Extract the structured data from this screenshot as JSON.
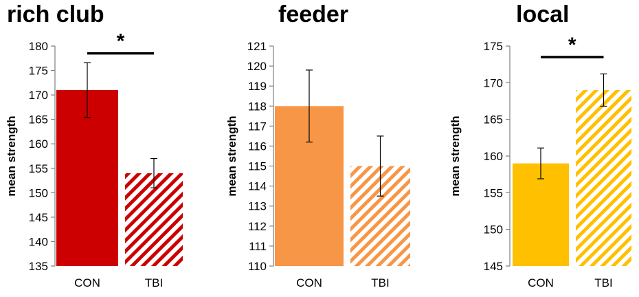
{
  "chart_data": [
    {
      "type": "bar",
      "title": "rich club",
      "ylabel": "mean strength",
      "xlabel": "",
      "categories": [
        "CON",
        "TBI"
      ],
      "values": [
        171,
        154
      ],
      "error": [
        5.6,
        3.0
      ],
      "ylim": [
        135,
        180
      ],
      "ytick_step": 5,
      "colors": [
        "#cc0000",
        "#cc0000"
      ],
      "patterns": [
        "solid",
        "hatched"
      ],
      "significance": {
        "pair": [
          0,
          1
        ],
        "label": "*",
        "y": 178.5
      },
      "grid": false,
      "legend": "none"
    },
    {
      "type": "bar",
      "title": "feeder",
      "ylabel": "mean strength",
      "xlabel": "",
      "categories": [
        "CON",
        "TBI"
      ],
      "values": [
        118,
        115
      ],
      "error": [
        1.8,
        1.5
      ],
      "ylim": [
        110,
        121
      ],
      "ytick_step": 1,
      "colors": [
        "#f79646",
        "#f79646"
      ],
      "patterns": [
        "solid",
        "hatched"
      ],
      "significance": null,
      "grid": false,
      "legend": "none"
    },
    {
      "type": "bar",
      "title": "local",
      "ylabel": "mean strength",
      "xlabel": "",
      "categories": [
        "CON",
        "TBI"
      ],
      "values": [
        159,
        169
      ],
      "error": [
        2.1,
        2.2
      ],
      "ylim": [
        145,
        175
      ],
      "ytick_step": 5,
      "colors": [
        "#ffc000",
        "#ffc000"
      ],
      "patterns": [
        "solid",
        "hatched"
      ],
      "significance": {
        "pair": [
          0,
          1
        ],
        "label": "*",
        "y": 173.5
      },
      "grid": false,
      "legend": "none"
    }
  ]
}
